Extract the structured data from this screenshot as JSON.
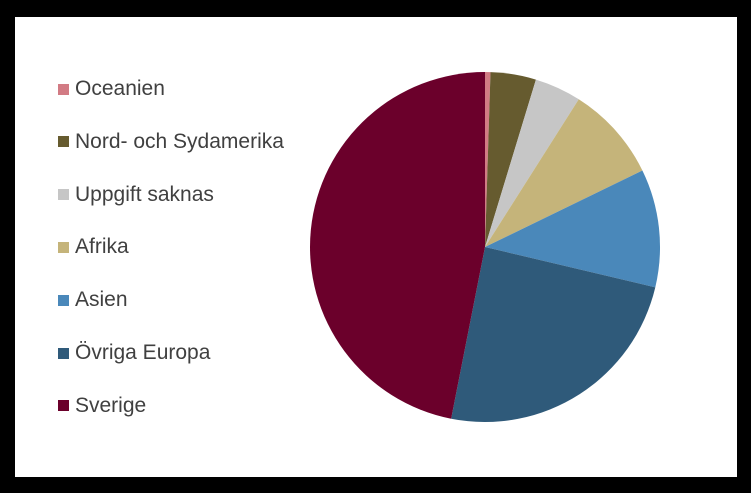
{
  "chart_data": {
    "type": "pie",
    "title": "",
    "legend_position": "left",
    "start_angle_deg": 0,
    "direction": "clockwise",
    "slices": [
      {
        "label": "Oceanien",
        "value": 0.5,
        "color": "#D27B84"
      },
      {
        "label": "Nord- och Sydamerika",
        "value": 4.2,
        "color": "#665B2F"
      },
      {
        "label": "Uppgift saknas",
        "value": 4.3,
        "color": "#C6C6C6"
      },
      {
        "label": "Afrika",
        "value": 8.8,
        "color": "#C5B47A"
      },
      {
        "label": "Asien",
        "value": 10.9,
        "color": "#4A88BA"
      },
      {
        "label": "Övriga Europa",
        "value": 24.4,
        "color": "#2F5A7A"
      },
      {
        "label": "Sverige",
        "value": 46.9,
        "color": "#6B002B"
      }
    ]
  }
}
